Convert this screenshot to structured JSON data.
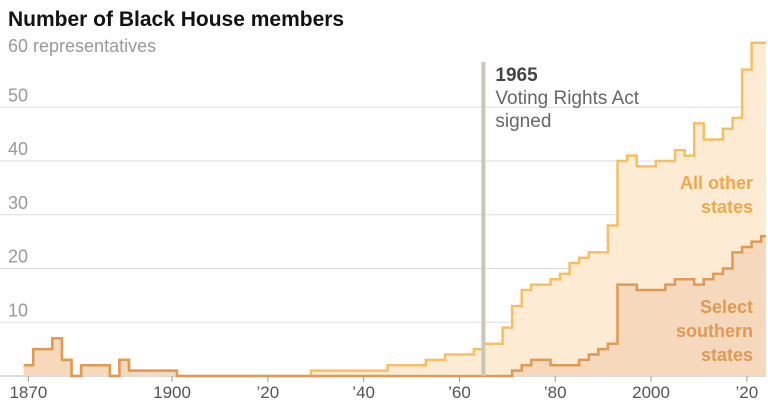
{
  "chart_data": {
    "type": "area",
    "title": "Number of Black House members",
    "subtitle": "60 representatives",
    "xlim": [
      1867,
      2024
    ],
    "ylim": [
      0,
      64
    ],
    "y_ticks": [
      10,
      20,
      30,
      40,
      50
    ],
    "x_ticks": [
      {
        "value": 1870,
        "label": "1870"
      },
      {
        "value": 1900,
        "label": "1900"
      },
      {
        "value": 1920,
        "label": "’20"
      },
      {
        "value": 1940,
        "label": "’40"
      },
      {
        "value": 1960,
        "label": "’60"
      },
      {
        "value": 1980,
        "label": "’80"
      },
      {
        "value": 2000,
        "label": "2000"
      },
      {
        "value": 2020,
        "label": "’20"
      }
    ],
    "grid": true,
    "colors": {
      "total_line": "#f7bf64",
      "total_fill": "#fdebd4",
      "south_line": "#df9a55",
      "south_fill": "#f6d9bd",
      "label_other": "#f0a94a",
      "label_south": "#df9a55",
      "annotation_line": "#c8c5b9",
      "grid": "#dddddd"
    },
    "annotation": {
      "x": 1965,
      "year": "1965",
      "lines": [
        "Voting Rights Act",
        "signed"
      ]
    },
    "labels": {
      "other": [
        "All other",
        "states"
      ],
      "south": [
        "Select",
        "southern",
        "states"
      ]
    },
    "series": [
      {
        "key": "total",
        "x": [
          1869,
          1871,
          1875,
          1877,
          1879,
          1881,
          1883,
          1885,
          1887,
          1889,
          1891,
          1893,
          1895,
          1897,
          1899,
          1901,
          1929,
          1935,
          1943,
          1945,
          1953,
          1955,
          1957,
          1963,
          1965,
          1967,
          1969,
          1971,
          1973,
          1975,
          1977,
          1979,
          1981,
          1983,
          1985,
          1987,
          1989,
          1991,
          1993,
          1995,
          1997,
          1999,
          2001,
          2003,
          2005,
          2007,
          2009,
          2011,
          2013,
          2015,
          2017,
          2019,
          2021,
          2023
        ],
        "y": [
          2,
          5,
          7,
          3,
          0,
          2,
          2,
          2,
          0,
          3,
          1,
          1,
          1,
          1,
          1,
          0,
          1,
          1,
          1,
          2,
          3,
          3,
          4,
          5,
          6,
          6,
          9,
          13,
          16,
          17,
          17,
          18,
          19,
          21,
          22,
          23,
          23,
          28,
          40,
          41,
          39,
          39,
          40,
          40,
          42,
          41,
          47,
          44,
          44,
          46,
          48,
          57,
          62,
          62
        ]
      },
      {
        "key": "south",
        "x": [
          1869,
          1871,
          1875,
          1877,
          1879,
          1881,
          1883,
          1885,
          1887,
          1889,
          1891,
          1893,
          1895,
          1897,
          1899,
          1901,
          1969,
          1971,
          1973,
          1975,
          1977,
          1979,
          1981,
          1983,
          1985,
          1987,
          1989,
          1991,
          1993,
          1995,
          1997,
          1999,
          2001,
          2003,
          2005,
          2007,
          2009,
          2011,
          2013,
          2015,
          2017,
          2019,
          2021,
          2023
        ],
        "y": [
          2,
          5,
          7,
          3,
          0,
          2,
          2,
          2,
          0,
          3,
          1,
          1,
          1,
          1,
          1,
          0,
          0,
          1,
          2,
          3,
          3,
          2,
          2,
          2,
          3,
          4,
          5,
          6,
          17,
          17,
          16,
          16,
          16,
          17,
          18,
          18,
          17,
          18,
          19,
          20,
          23,
          24,
          25,
          26
        ]
      }
    ]
  }
}
